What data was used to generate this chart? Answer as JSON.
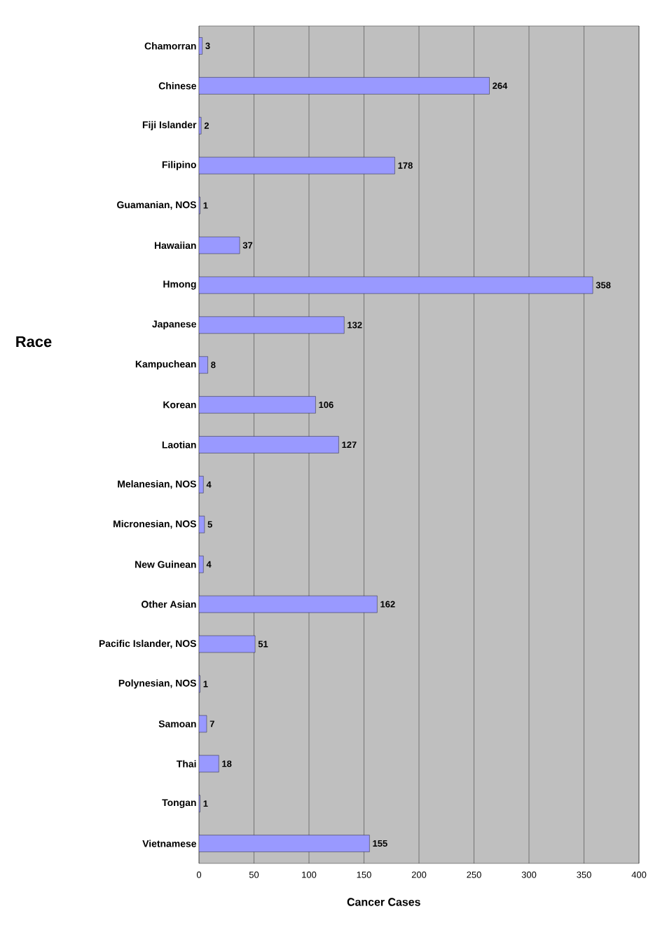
{
  "chart_data": {
    "type": "bar",
    "orientation": "horizontal",
    "xlabel": "Cancer Cases",
    "ylabel": "Race",
    "categories": [
      "Chamorran",
      "Chinese",
      "Fiji Islander",
      "Filipino",
      "Guamanian, NOS",
      "Hawaiian",
      "Hmong",
      "Japanese",
      "Kampuchean",
      "Korean",
      "Laotian",
      "Melanesian, NOS",
      "Micronesian, NOS",
      "New Guinean",
      "Other Asian",
      "Pacific Islander, NOS",
      "Polynesian, NOS",
      "Samoan",
      "Thai",
      "Tongan",
      "Vietnamese"
    ],
    "values": [
      3,
      264,
      2,
      178,
      1,
      37,
      358,
      132,
      8,
      106,
      127,
      4,
      5,
      4,
      162,
      51,
      1,
      7,
      18,
      1,
      155
    ],
    "color": "#9999ff",
    "data_labels": true,
    "grid": "x",
    "xlim": [
      0,
      400
    ],
    "xticks": [
      0,
      50,
      100,
      150,
      200,
      250,
      300,
      350,
      400
    ]
  }
}
